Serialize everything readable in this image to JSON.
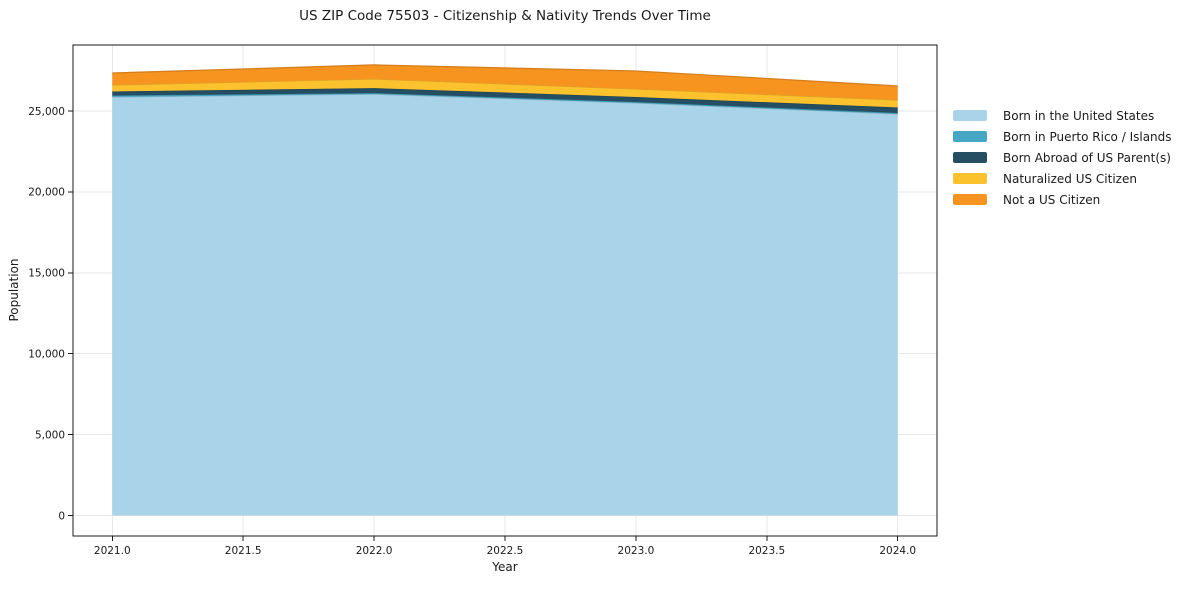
{
  "chart_data": {
    "type": "area",
    "stacked": true,
    "title": "US ZIP Code 75503 - Citizenship & Nativity Trends Over Time",
    "xlabel": "Year",
    "ylabel": "Population",
    "x": [
      2021,
      2022,
      2023,
      2024
    ],
    "series": [
      {
        "name": "Born in the United States",
        "color": "#a8d3e8",
        "values": [
          25870,
          26050,
          25500,
          24820
        ]
      },
      {
        "name": "Born in Puerto Rico / Islands",
        "color": "#45a7c4",
        "values": [
          90,
          60,
          60,
          60
        ]
      },
      {
        "name": "Born Abroad of US Parent(s)",
        "color": "#254e63",
        "values": [
          250,
          310,
          310,
          340
        ]
      },
      {
        "name": "Naturalized US Citizen",
        "color": "#fcc22e",
        "values": [
          400,
          560,
          495,
          460
        ]
      },
      {
        "name": "Not a US Citizen",
        "color": "#f79420",
        "values": [
          740,
          870,
          1110,
          870
        ]
      }
    ],
    "totals": [
      27350,
      27850,
      27475,
      26550
    ],
    "x_tick_labels": [
      "2021.0",
      "2021.5",
      "2022.0",
      "2022.5",
      "2023.0",
      "2023.5",
      "2024.0"
    ],
    "y_tick_labels": [
      "0",
      "5,000",
      "10,000",
      "15,000",
      "20,000",
      "25,000"
    ],
    "x_range": [
      2020.85,
      2024.15
    ],
    "y_range": [
      -1267,
      29083
    ],
    "grid": true,
    "legend_position": "right-outside",
    "colors": {
      "background": "#ffffff",
      "frame": "#1a1a1a",
      "grid": "#e7e7e7",
      "text": "#1a1a1a"
    }
  }
}
